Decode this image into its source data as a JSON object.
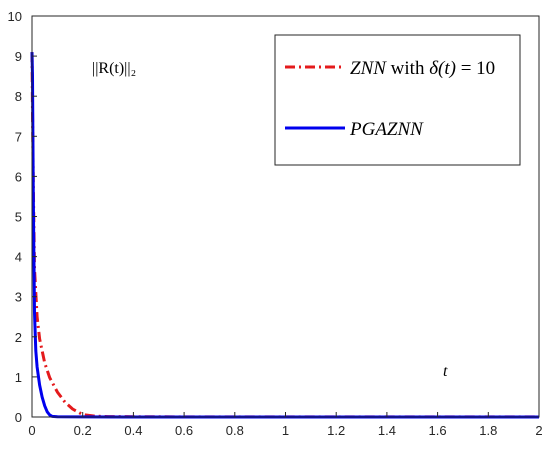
{
  "chart_data": {
    "type": "line",
    "title": "",
    "xlabel": "t",
    "ylabel": "||R(t)||₂",
    "xlim": [
      0,
      2
    ],
    "ylim": [
      0,
      10
    ],
    "xticks": [
      0,
      0.2,
      0.4,
      0.6,
      0.8,
      1,
      1.2,
      1.4,
      1.6,
      1.8,
      2
    ],
    "xtick_labels": [
      "0",
      "0.2",
      "0.4",
      "0.6",
      "0.8",
      "1",
      "1.2",
      "1.4",
      "1.6",
      "1.8",
      "2"
    ],
    "yticks": [
      0,
      1,
      2,
      3,
      4,
      5,
      6,
      7,
      8,
      9,
      10
    ],
    "ytick_labels": [
      "0",
      "1",
      "2",
      "3",
      "4",
      "5",
      "6",
      "7",
      "8",
      "9",
      "10"
    ],
    "grid": false,
    "legend": {
      "placement": "top-right"
    },
    "series": [
      {
        "name": "ZNN with δ(t) = 10",
        "legend_math": "ZNN",
        "legend_mid": " with ",
        "legend_math2": "δ(t)",
        "legend_tail": " = 10",
        "color": "#e41a1c",
        "style": "dash-dot",
        "x": [
          0,
          0.002,
          0.005,
          0.01,
          0.02,
          0.03,
          0.05,
          0.07,
          0.1,
          0.13,
          0.16,
          0.2,
          0.25,
          0.3,
          0.5,
          1,
          2
        ],
        "y": [
          9.1,
          7.6,
          5.8,
          3.7,
          2.5,
          1.95,
          1.35,
          0.98,
          0.62,
          0.37,
          0.2,
          0.06,
          0.02,
          0.01,
          0.005,
          0.003,
          0.002
        ]
      },
      {
        "name": "PGAZNN",
        "color": "#0000ee",
        "style": "solid",
        "x": [
          0,
          0.002,
          0.005,
          0.01,
          0.015,
          0.02,
          0.03,
          0.04,
          0.05,
          0.06,
          0.07,
          0.08,
          0.1,
          0.2,
          0.5,
          1,
          2
        ],
        "y": [
          9.1,
          8.5,
          5.5,
          2.6,
          1.65,
          1.25,
          0.8,
          0.5,
          0.28,
          0.13,
          0.05,
          0.015,
          0.005,
          0.002,
          0.001,
          0.001,
          0.001
        ]
      }
    ]
  }
}
